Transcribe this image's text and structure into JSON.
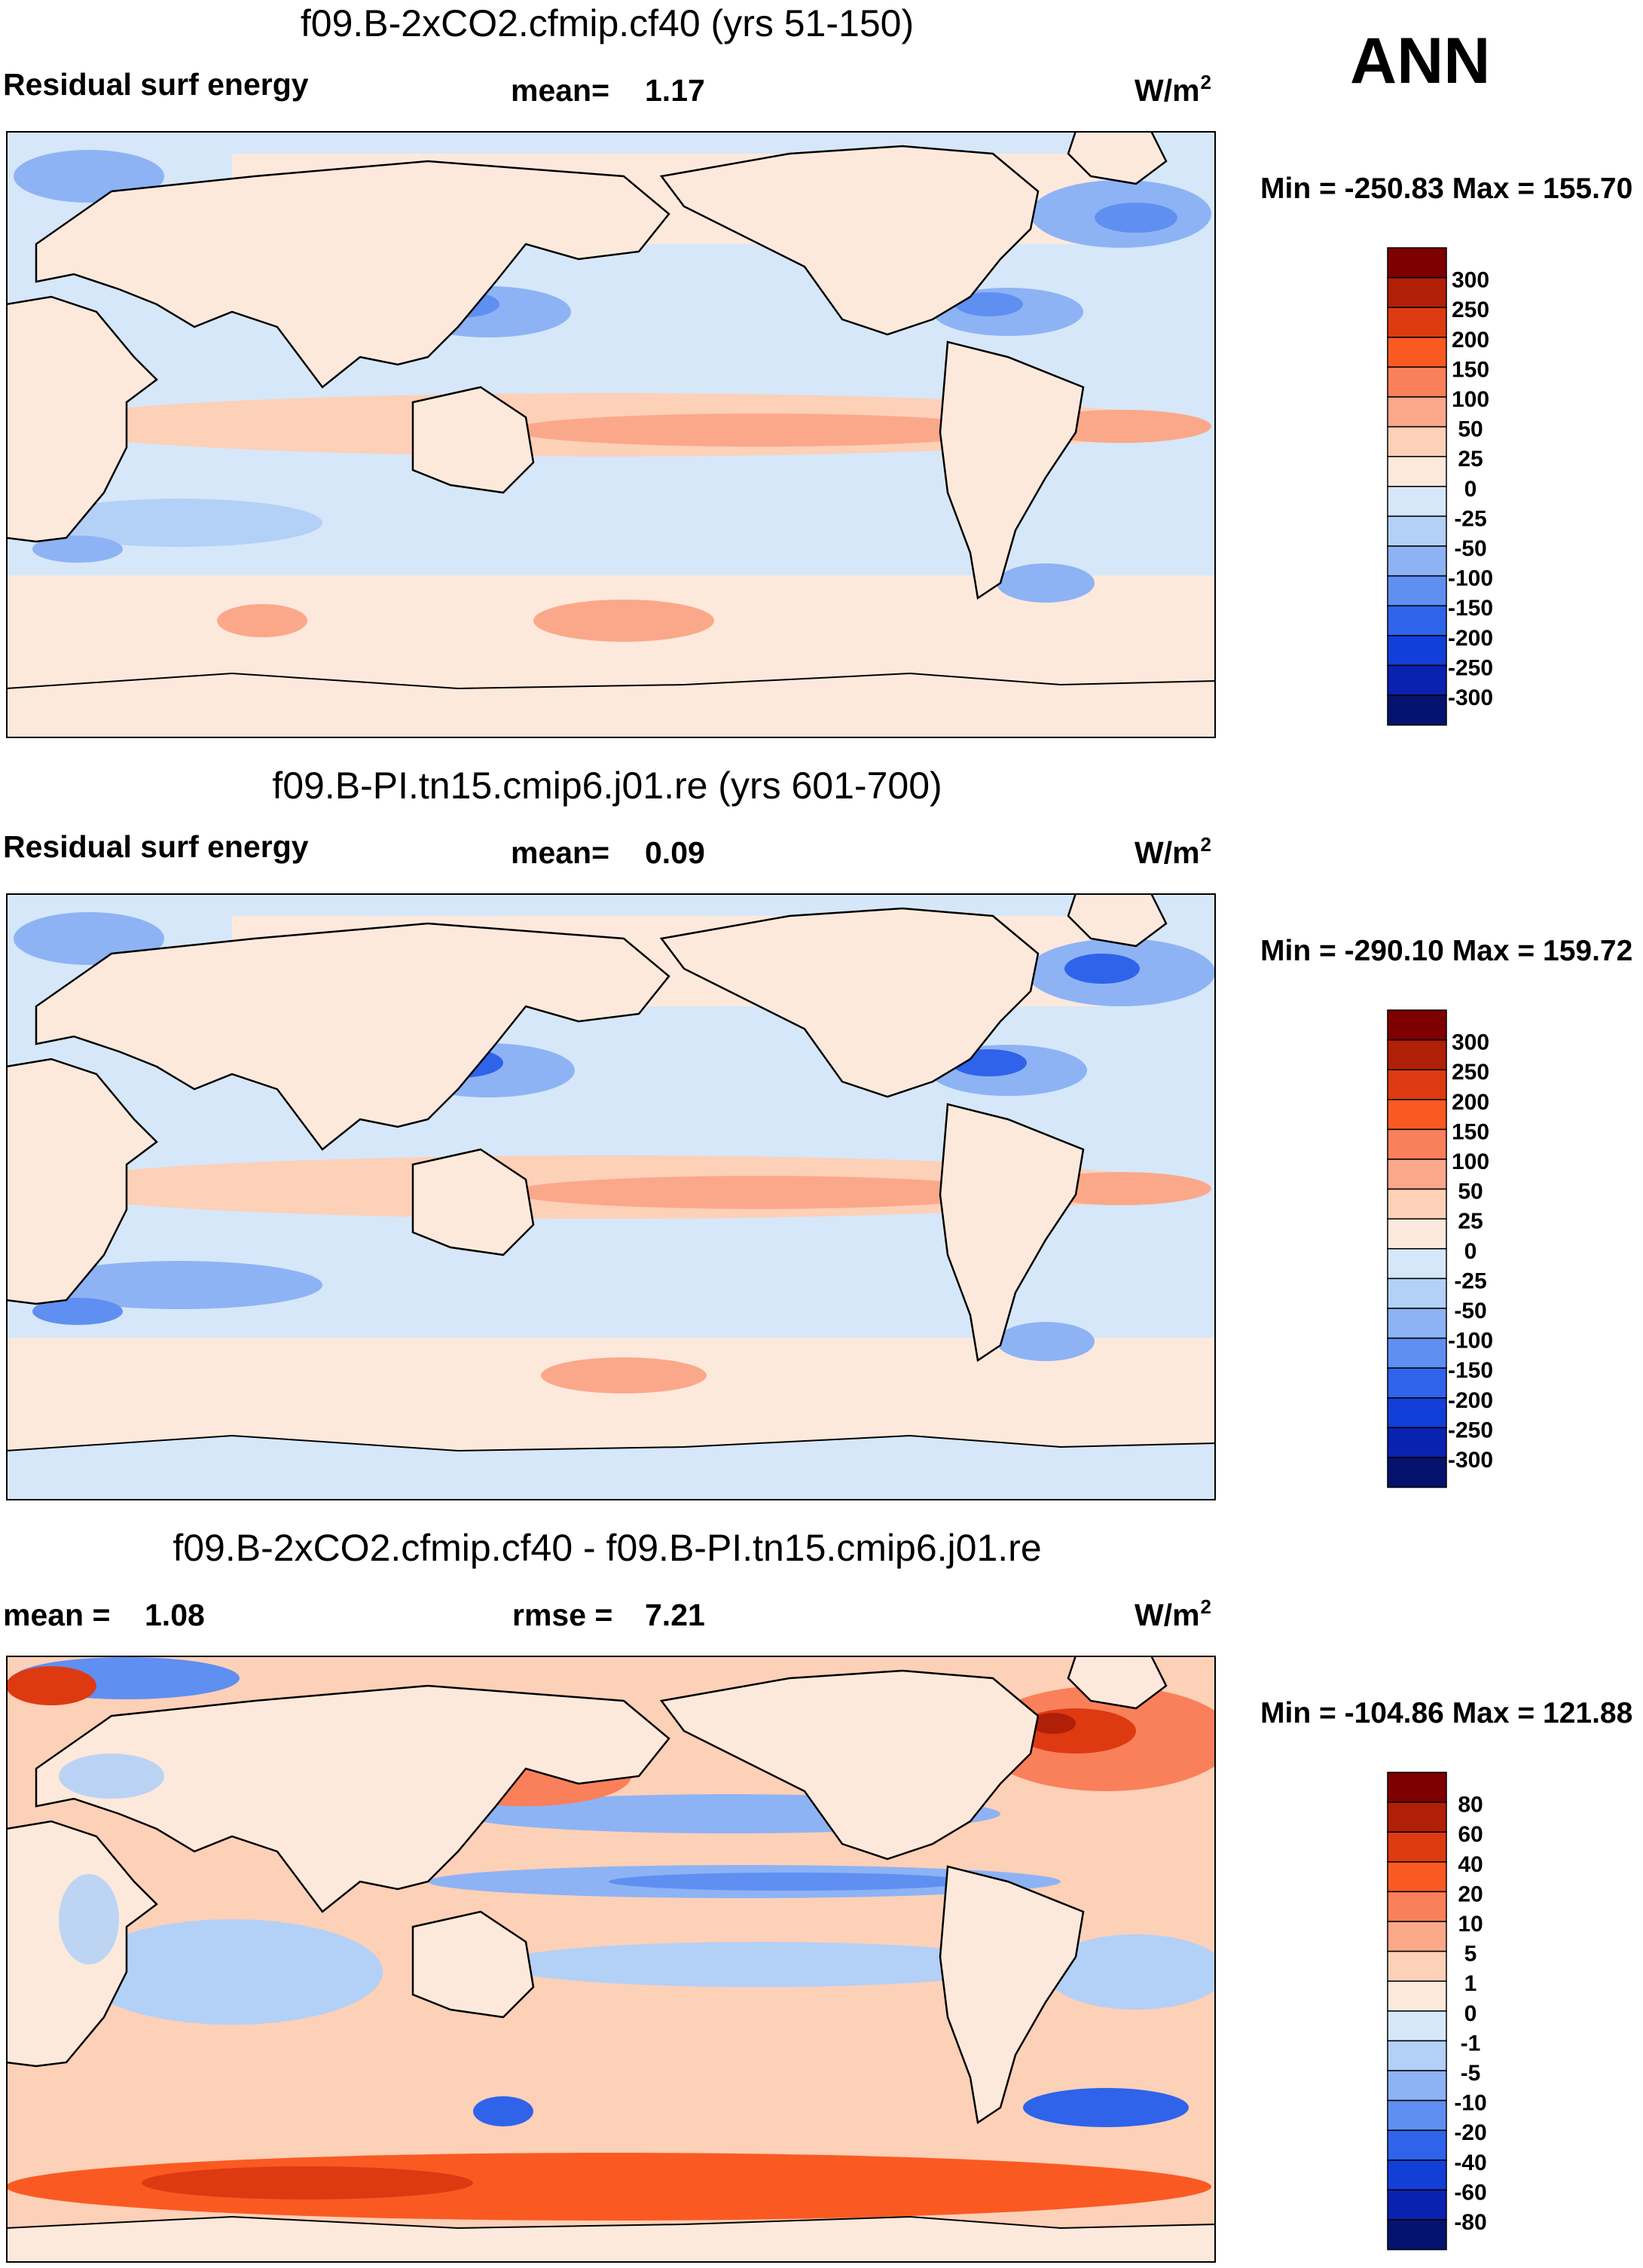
{
  "season": "ANN",
  "panels": [
    {
      "title": "f09.B-2xCO2.cfmip.cf40 (yrs 51-150)",
      "left_label": "Residual surf energy",
      "stat1": {
        "label": "mean=",
        "value": "1.17"
      },
      "stat2": null,
      "unit": "W/m",
      "unit_sup": "2",
      "minmax": "Min = -250.83 Max = 155.70",
      "legend": [
        "300",
        "250",
        "200",
        "150",
        "100",
        "50",
        "25",
        "0",
        "-25",
        "-50",
        "-100",
        "-150",
        "-200",
        "-250",
        "-300"
      ]
    },
    {
      "title": "f09.B-PI.tn15.cmip6.j01.re (yrs 601-700)",
      "left_label": "Residual surf energy",
      "stat1": {
        "label": "mean=",
        "value": "0.09"
      },
      "stat2": null,
      "unit": "W/m",
      "unit_sup": "2",
      "minmax": "Min = -290.10 Max = 159.72",
      "legend": [
        "300",
        "250",
        "200",
        "150",
        "100",
        "50",
        "25",
        "0",
        "-25",
        "-50",
        "-100",
        "-150",
        "-200",
        "-250",
        "-300"
      ]
    },
    {
      "title": "f09.B-2xCO2.cfmip.cf40 - f09.B-PI.tn15.cmip6.j01.re",
      "left_label": null,
      "stat1": {
        "label": "mean =",
        "value": "1.08"
      },
      "stat2": {
        "label": "rmse =",
        "value": "7.21"
      },
      "unit": "W/m",
      "unit_sup": "2",
      "minmax": "Min = -104.86 Max = 121.88",
      "legend": [
        "80",
        "60",
        "40",
        "20",
        "10",
        "5",
        "1",
        "0",
        "-1",
        "-5",
        "-10",
        "-20",
        "-40",
        "-60",
        "-80"
      ]
    }
  ],
  "colors": {
    "scale": [
      "#7f0000",
      "#b01f08",
      "#dd3a12",
      "#fa5a22",
      "#f9805a",
      "#fba88a",
      "#fdd0b8",
      "#fde9dc",
      "#d6e7f9",
      "#b3d0f7",
      "#8db3f5",
      "#5f8ff1",
      "#2f63ea",
      "#123fd8",
      "#0a22b0",
      "#06136e"
    ],
    "land": "#fde9dc",
    "ocean_base": "#d6e7f9",
    "coast": "#000000"
  },
  "chart_data": [
    {
      "type": "heatmap",
      "title": "f09.B-2xCO2.cfmip.cf40 (yrs 51-150)",
      "variable": "Residual surf energy",
      "units": "W/m2",
      "mean": 1.17,
      "min": -250.83,
      "max": 155.7,
      "contour_levels": [
        -300,
        -250,
        -200,
        -150,
        -100,
        -50,
        -25,
        0,
        25,
        50,
        100,
        150,
        200,
        250,
        300
      ],
      "projection": "cylindrical equidistant, 0-360E centered on Pacific"
    },
    {
      "type": "heatmap",
      "title": "f09.B-PI.tn15.cmip6.j01.re (yrs 601-700)",
      "variable": "Residual surf energy",
      "units": "W/m2",
      "mean": 0.09,
      "min": -290.1,
      "max": 159.72,
      "contour_levels": [
        -300,
        -250,
        -200,
        -150,
        -100,
        -50,
        -25,
        0,
        25,
        50,
        100,
        150,
        200,
        250,
        300
      ],
      "projection": "cylindrical equidistant, 0-360E centered on Pacific"
    },
    {
      "type": "heatmap",
      "title": "f09.B-2xCO2.cfmip.cf40 - f09.B-PI.tn15.cmip6.j01.re",
      "variable": "Residual surf energy difference",
      "units": "W/m2",
      "mean": 1.08,
      "rmse": 7.21,
      "min": -104.86,
      "max": 121.88,
      "contour_levels": [
        -80,
        -60,
        -40,
        -20,
        -10,
        -5,
        -1,
        0,
        1,
        5,
        10,
        20,
        40,
        60,
        80
      ],
      "projection": "cylindrical equidistant, 0-360E centered on Pacific"
    }
  ]
}
